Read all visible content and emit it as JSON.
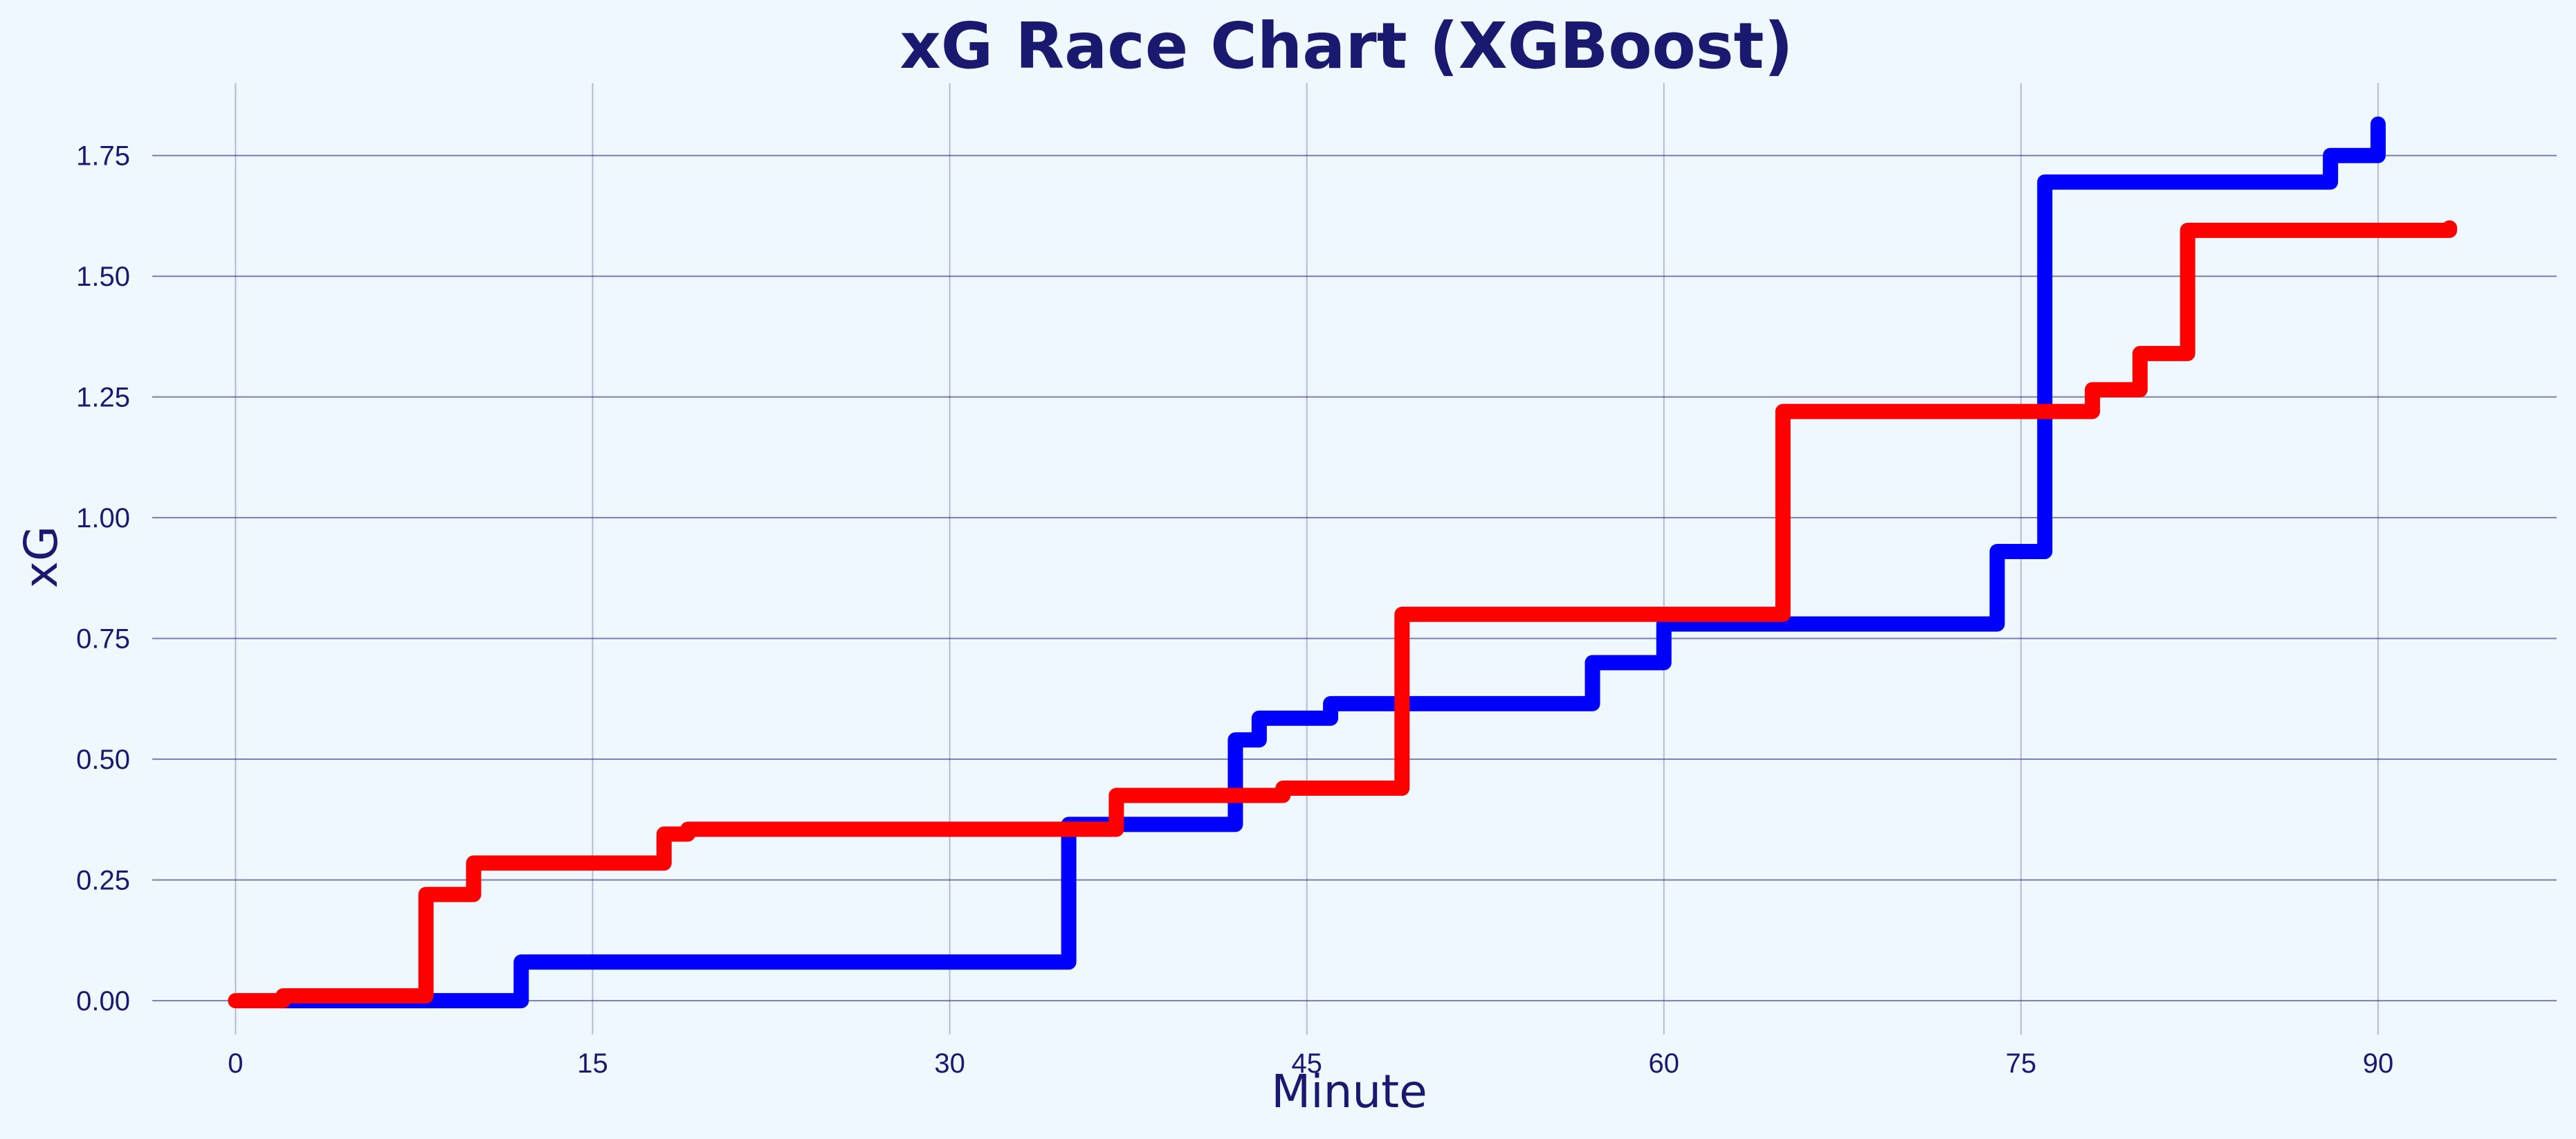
{
  "chart_data": {
    "type": "line",
    "step": "post",
    "title": "xG Race Chart (XGBoost)",
    "xlabel": "Minute",
    "ylabel": "xG",
    "xlim": [
      -3.5,
      97.5
    ],
    "ylim": [
      -0.07,
      1.9
    ],
    "xticks": [
      0,
      15,
      30,
      45,
      60,
      75,
      90
    ],
    "xtick_labels": [
      "0",
      "15",
      "30",
      "45",
      "60",
      "75",
      "90"
    ],
    "yticks": [
      0.0,
      0.25,
      0.5,
      0.75,
      1.0,
      1.25,
      1.5,
      1.75
    ],
    "ytick_labels": [
      "0.00",
      "0.25",
      "0.50",
      "0.75",
      "1.00",
      "1.25",
      "1.50",
      "1.75"
    ],
    "grid": true,
    "legend": false,
    "background": "#f0f8ff",
    "text_color": "#191970",
    "series": [
      {
        "color": "#0000ff",
        "points": [
          [
            2,
            0.0
          ],
          [
            12,
            0.08
          ],
          [
            35,
            0.365
          ],
          [
            42,
            0.54
          ],
          [
            43,
            0.585
          ],
          [
            46,
            0.615
          ],
          [
            57,
            0.7
          ],
          [
            60,
            0.78
          ],
          [
            74,
            0.93
          ],
          [
            76,
            1.695
          ],
          [
            88,
            1.75
          ],
          [
            90,
            1.815
          ]
        ]
      },
      {
        "color": "#ff0000",
        "points": [
          [
            0,
            0.0
          ],
          [
            2,
            0.01
          ],
          [
            8,
            0.22
          ],
          [
            10,
            0.285
          ],
          [
            18,
            0.345
          ],
          [
            19,
            0.355
          ],
          [
            37,
            0.425
          ],
          [
            44,
            0.44
          ],
          [
            49,
            0.8
          ],
          [
            65,
            1.22
          ],
          [
            78,
            1.265
          ],
          [
            80,
            1.34
          ],
          [
            82,
            1.595
          ],
          [
            93,
            1.6
          ]
        ]
      }
    ]
  }
}
